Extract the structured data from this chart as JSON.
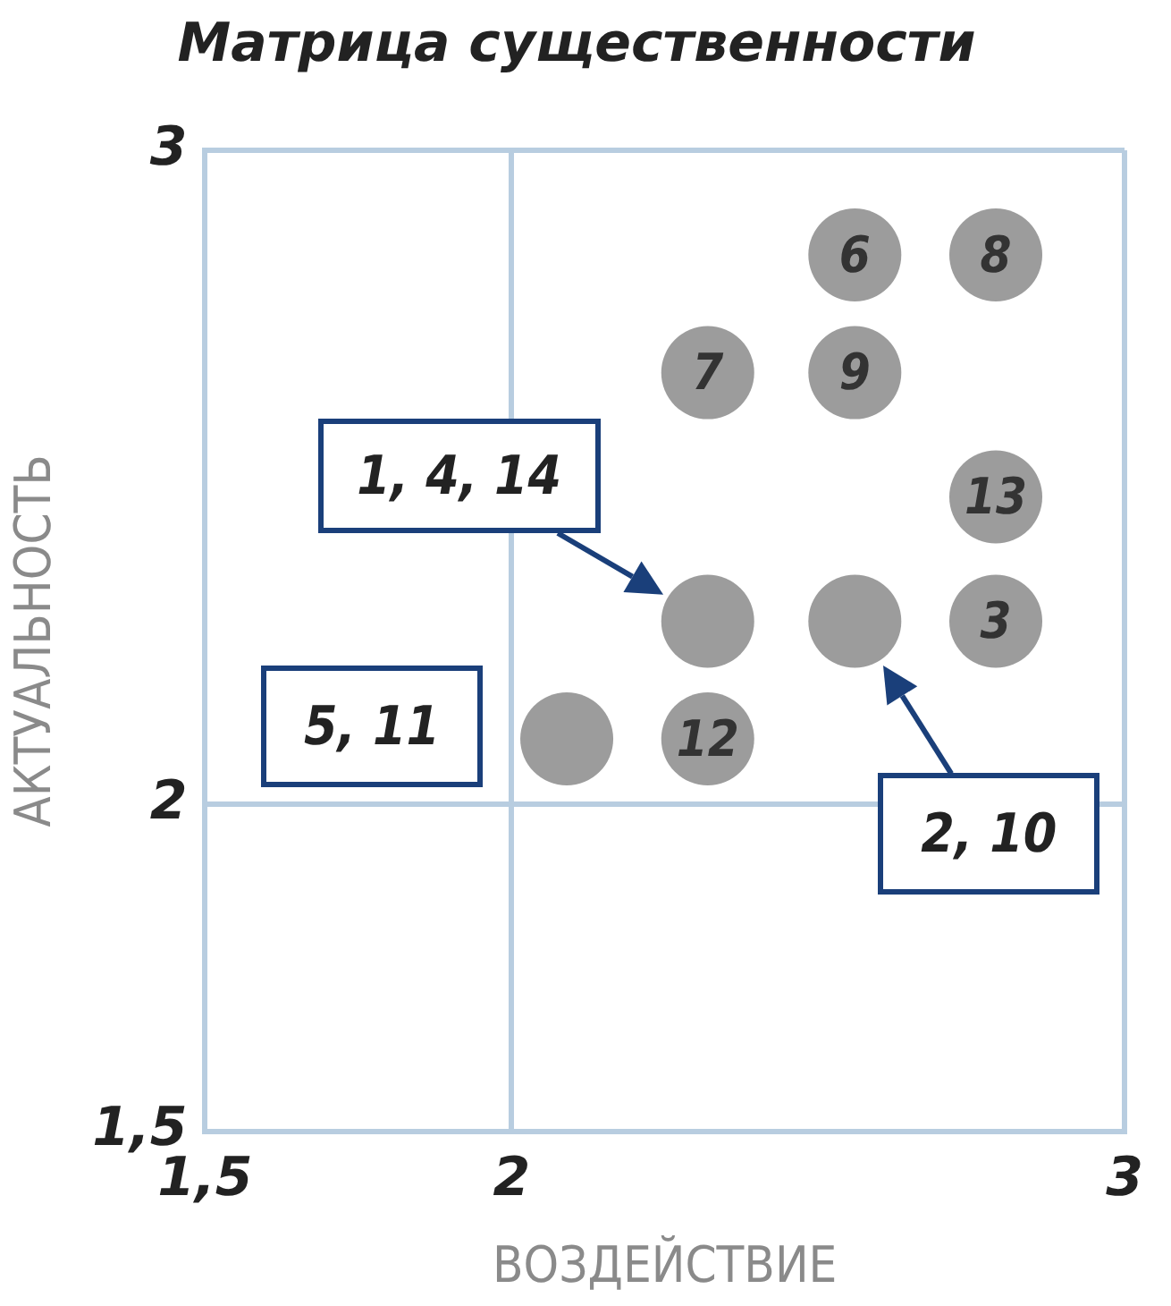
{
  "chart_data": {
    "type": "scatter",
    "title": "Матрица существенности",
    "xlabel": "ВОЗДЕЙСТВИЕ",
    "ylabel": "АКТУАЛЬНОСТЬ",
    "x": [
      2.56,
      2.79,
      2.32,
      2.56,
      2.79,
      2.32,
      2.56,
      2.79,
      2.09,
      2.32
    ],
    "series": [
      {
        "color": "#9c9c9c",
        "values": [
          2.84,
          2.84,
          2.66,
          2.66,
          2.47,
          2.28,
          2.28,
          2.28,
          2.1,
          2.1
        ]
      }
    ],
    "xlim": [
      1.5,
      3
    ],
    "ylim": [
      1.5,
      3
    ],
    "xticks": [
      {
        "value": 1.5,
        "label": "1,5"
      },
      2,
      3
    ],
    "yticks": [
      {
        "value": 1.5,
        "label": "1,5"
      },
      2,
      3
    ],
    "grid": true,
    "marker": "circle",
    "legend": false,
    "annotations": [
      "1, 4, 14",
      "2, 10",
      {
        "text": "5, 11",
        "x": 2.09,
        "y": 2.1
      },
      {
        "text": "6",
        "x": 2.56,
        "y": 2.84
      },
      {
        "text": "8",
        "x": 2.79,
        "y": 2.84
      },
      {
        "text": "7",
        "x": 2.32,
        "y": 2.66
      },
      {
        "text": "9",
        "x": 2.56,
        "y": 2.66
      },
      {
        "text": "13",
        "x": 2.79,
        "y": 2.47
      },
      {
        "text": "3",
        "x": 2.79,
        "y": 2.28
      },
      {
        "text": "12",
        "x": 2.32,
        "y": 2.1
      }
    ]
  }
}
